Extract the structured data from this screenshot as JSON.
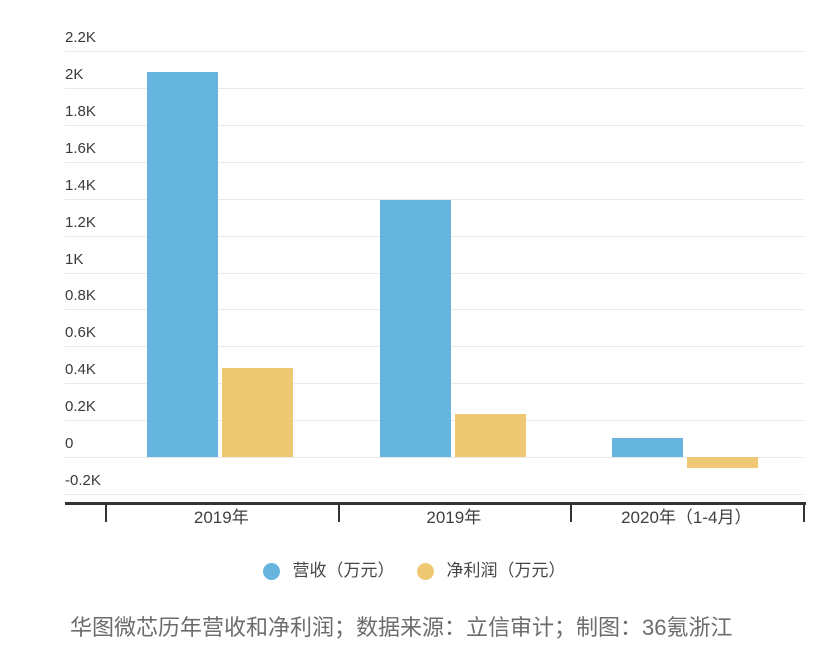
{
  "chart_data": {
    "type": "bar",
    "categories": [
      "2019年",
      "2019年",
      "2020年（1-4月）"
    ],
    "series": [
      {
        "name": "营收（万元）",
        "color": "#66B5DF",
        "values": [
          2085,
          1395,
          105
        ]
      },
      {
        "name": "净利润（万元）",
        "color": "#EFC873",
        "values": [
          480,
          235,
          -60
        ]
      }
    ],
    "ylim": [
      -200,
      2200
    ],
    "y_tick_step": 200,
    "y_ticks": [
      {
        "value": 2200,
        "label": "2.2K"
      },
      {
        "value": 2000,
        "label": "2K"
      },
      {
        "value": 1800,
        "label": "1.8K"
      },
      {
        "value": 1600,
        "label": "1.6K"
      },
      {
        "value": 1400,
        "label": "1.4K"
      },
      {
        "value": 1200,
        "label": "1.2K"
      },
      {
        "value": 1000,
        "label": "1K"
      },
      {
        "value": 800,
        "label": "0.8K"
      },
      {
        "value": 600,
        "label": "0.6K"
      },
      {
        "value": 400,
        "label": "0.4K"
      },
      {
        "value": 200,
        "label": "0.2K"
      },
      {
        "value": 0,
        "label": "0"
      },
      {
        "value": -200,
        "label": "-0.2K"
      }
    ],
    "grid": true,
    "legend_position": "bottom",
    "title": "华图微芯历年营收和净利润",
    "xlabel": "",
    "ylabel": ""
  },
  "legend": {
    "items": [
      {
        "label": "营收（万元）",
        "color": "#66B5DF"
      },
      {
        "label": "净利润（万元）",
        "color": "#EFC873"
      }
    ]
  },
  "caption": "华图微芯历年营收和净利润；数据来源：立信审计；制图：36氪浙江",
  "colors": {
    "revenue_bar": "#66B5DF",
    "profit_bar": "#EFC873",
    "gridline": "#e9e9e9",
    "axis": "#333333",
    "caption_text": "#6c6c6c"
  }
}
